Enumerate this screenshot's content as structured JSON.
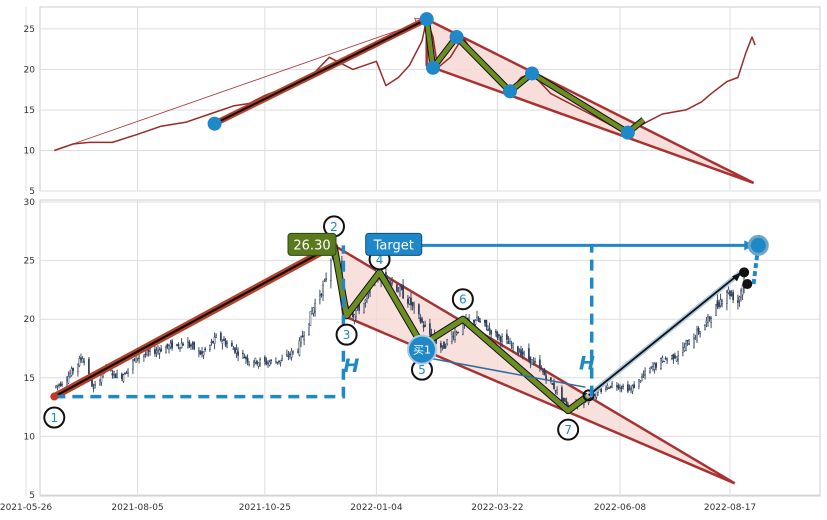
{
  "chart_data": [
    {
      "type": "line",
      "panel": "top",
      "ylim": [
        5,
        28
      ],
      "yticks": [
        "5",
        "10",
        "15",
        "20",
        "25"
      ],
      "grid": true,
      "series": [
        {
          "color": "#9b2a2a",
          "points": [
            [
              "2021-06-13",
              10.0
            ],
            [
              "2021-06-25",
              10.8
            ],
            [
              "2021-07-05",
              11.0
            ],
            [
              "2021-07-20",
              11.0
            ],
            [
              "2021-08-05",
              12.0
            ],
            [
              "2021-08-20",
              13.0
            ],
            [
              "2021-09-05",
              13.5
            ],
            [
              "2021-09-20",
              14.5
            ],
            [
              "2021-10-05",
              15.5
            ],
            [
              "2021-10-15",
              15.8
            ],
            [
              "2021-10-25",
              16.8
            ],
            [
              "2021-11-10",
              18.0
            ],
            [
              "2021-11-25",
              19.5
            ],
            [
              "2021-12-05",
              21.5
            ],
            [
              "2021-12-20",
              20.0
            ],
            [
              "2022-01-04",
              21.0
            ],
            [
              "2022-01-10",
              18.0
            ],
            [
              "2022-01-18",
              19.0
            ],
            [
              "2022-01-25",
              20.5
            ],
            [
              "2022-02-02",
              23.5
            ],
            [
              "2022-02-05",
              26.2
            ],
            [
              "2022-02-09",
              24.0
            ],
            [
              "2022-02-12",
              20.2
            ],
            [
              "2022-02-20",
              21.5
            ],
            [
              "2022-02-28",
              24.0
            ],
            [
              "2022-03-10",
              21.0
            ],
            [
              "2022-03-22",
              18.5
            ],
            [
              "2022-03-30",
              17.3
            ],
            [
              "2022-04-06",
              19.0
            ],
            [
              "2022-04-13",
              19.5
            ],
            [
              "2022-04-25",
              17.0
            ],
            [
              "2022-05-05",
              16.0
            ],
            [
              "2022-05-20",
              14.5
            ],
            [
              "2022-06-08",
              12.5
            ],
            [
              "2022-06-13",
              12.2
            ],
            [
              "2022-06-25",
              13.5
            ],
            [
              "2022-07-05",
              14.5
            ],
            [
              "2022-07-20",
              15.0
            ],
            [
              "2022-07-30",
              16.0
            ],
            [
              "2022-08-05",
              17.0
            ],
            [
              "2022-08-15",
              18.5
            ],
            [
              "2022-08-22",
              19.0
            ],
            [
              "2022-08-27",
              22.0
            ],
            [
              "2022-08-31",
              24.0
            ],
            [
              "2022-09-02",
              23.0
            ]
          ]
        }
      ],
      "markers": [
        {
          "date": "2021-09-23",
          "value": 13.3
        },
        {
          "date": "2022-02-05",
          "value": 26.2
        },
        {
          "date": "2022-02-09",
          "value": 20.2
        },
        {
          "date": "2022-02-24",
          "value": 24.0
        },
        {
          "date": "2022-03-30",
          "value": 17.3
        },
        {
          "date": "2022-04-13",
          "value": 19.5
        },
        {
          "date": "2022-06-13",
          "value": 12.2
        }
      ],
      "trend_up": [
        [
          "2021-09-23",
          13.3
        ],
        [
          "2022-02-05",
          26.2
        ]
      ],
      "zigzag": [
        [
          "2022-02-05",
          26.2
        ],
        [
          "2022-02-09",
          20.2
        ],
        [
          "2022-02-24",
          24.0
        ],
        [
          "2022-03-30",
          17.3
        ],
        [
          "2022-04-13",
          19.5
        ],
        [
          "2022-06-13",
          12.2
        ],
        [
          "2022-06-23",
          13.8
        ]
      ],
      "wedge": [
        [
          "2022-02-05",
          26.2
        ],
        [
          "2022-09-01",
          6.0
        ],
        [
          "2022-02-05",
          20.5
        ]
      ],
      "ghost_arrow": [
        [
          "2021-06-13",
          10.0
        ],
        [
          "2022-02-05",
          26.2
        ]
      ]
    },
    {
      "type": "candlestick",
      "panel": "bottom",
      "ylim": [
        5,
        30
      ],
      "yticks": [
        "5",
        "10",
        "15",
        "20",
        "25",
        "30"
      ],
      "xticks": [
        "2021-05-26",
        "2021-08-05",
        "2021-10-25",
        "2022-01-04",
        "2022-03-22",
        "2022-06-08",
        "2022-08-17"
      ],
      "grid": true,
      "price_path": [
        [
          "2021-06-13",
          14.2
        ],
        [
          "2021-06-20",
          14.8
        ],
        [
          "2021-07-01",
          16.8
        ],
        [
          "2021-07-08",
          14.0
        ],
        [
          "2021-07-15",
          15.8
        ],
        [
          "2021-07-25",
          15.0
        ],
        [
          "2021-08-05",
          16.8
        ],
        [
          "2021-08-20",
          17.5
        ],
        [
          "2021-09-05",
          18.0
        ],
        [
          "2021-09-15",
          17.0
        ],
        [
          "2021-09-25",
          18.5
        ],
        [
          "2021-10-05",
          17.5
        ],
        [
          "2021-10-15",
          16.5
        ],
        [
          "2021-10-25",
          16.3
        ],
        [
          "2021-11-05",
          16.5
        ],
        [
          "2021-11-15",
          17.5
        ],
        [
          "2021-11-25",
          21.0
        ],
        [
          "2021-12-02",
          23.0
        ],
        [
          "2021-12-08",
          26.3
        ],
        [
          "2021-12-14",
          22.0
        ],
        [
          "2021-12-20",
          20.5
        ],
        [
          "2021-12-28",
          21.5
        ],
        [
          "2022-01-04",
          24.0
        ],
        [
          "2022-01-15",
          23.0
        ],
        [
          "2022-01-25",
          21.5
        ],
        [
          "2022-02-05",
          19.0
        ],
        [
          "2022-02-15",
          17.5
        ],
        [
          "2022-02-20",
          18.5
        ],
        [
          "2022-02-28",
          19.5
        ],
        [
          "2022-03-08",
          20.0
        ],
        [
          "2022-03-18",
          19.0
        ],
        [
          "2022-03-28",
          18.0
        ],
        [
          "2022-04-08",
          17.0
        ],
        [
          "2022-04-18",
          15.8
        ],
        [
          "2022-04-28",
          14.0
        ],
        [
          "2022-05-06",
          12.5
        ],
        [
          "2022-05-15",
          13.0
        ],
        [
          "2022-05-25",
          13.8
        ],
        [
          "2022-06-04",
          14.5
        ],
        [
          "2022-06-15",
          14.0
        ],
        [
          "2022-06-25",
          15.5
        ],
        [
          "2022-07-05",
          16.5
        ],
        [
          "2022-07-15",
          17.0
        ],
        [
          "2022-07-25",
          18.5
        ],
        [
          "2022-08-01",
          19.5
        ],
        [
          "2022-08-08",
          21.0
        ],
        [
          "2022-08-15",
          22.5
        ],
        [
          "2022-08-22",
          21.5
        ],
        [
          "2022-08-26",
          23.5
        ]
      ],
      "red_trend": [
        [
          "2021-06-13",
          13.4
        ],
        [
          "2021-12-08",
          26.3
        ]
      ],
      "zigzag": [
        [
          "2021-12-08",
          26.3
        ],
        [
          "2021-12-16",
          20.3
        ],
        [
          "2022-01-06",
          24.0
        ],
        [
          "2022-02-02",
          17.8
        ],
        [
          "2022-02-28",
          20.0
        ],
        [
          "2022-05-06",
          12.2
        ],
        [
          "2022-05-19",
          13.5
        ]
      ],
      "wedge": [
        [
          "2021-12-08",
          26.3
        ],
        [
          "2022-08-20",
          6.0
        ],
        [
          "2021-12-14",
          20.3
        ]
      ],
      "breakout_line": [
        [
          "2022-05-19",
          13.5
        ],
        [
          "2022-08-24",
          24.0
        ]
      ],
      "channel_arrow": [
        [
          "2022-02-02",
          16.8
        ],
        [
          "2022-05-17",
          14.2
        ]
      ],
      "target_arrow": [
        [
          "2022-01-22",
          26.3
        ],
        [
          "2022-09-04",
          26.3
        ]
      ],
      "target_dashed": [
        [
          "2022-09-01",
          23.0
        ],
        [
          "2022-09-04",
          26.3
        ]
      ],
      "h_dashed_1": [
        [
          "2021-06-13",
          13.4
        ],
        [
          "2021-12-14",
          13.4
        ],
        [
          "2021-12-14",
          26.3
        ]
      ],
      "h_dashed_2": [
        [
          "2022-05-21",
          13.4
        ],
        [
          "2022-05-21",
          26.3
        ]
      ],
      "target_marker": {
        "date": "2022-09-04",
        "value": 26.3
      },
      "buy_marker": {
        "date": "2022-02-02",
        "value": 17.4
      },
      "black_dots": [
        {
          "date": "2022-08-26",
          "value": 24.0
        },
        {
          "date": "2022-08-28",
          "value": 23.0
        }
      ],
      "pivots": [
        {
          "label": "1",
          "date": "2021-06-13",
          "value": 13.4,
          "dy": 21
        },
        {
          "label": "2",
          "date": "2021-12-08",
          "value": 26.3,
          "dy": -19
        },
        {
          "label": "3",
          "date": "2021-12-16",
          "value": 20.3,
          "dy": 19
        },
        {
          "label": "4",
          "date": "2022-01-06",
          "value": 24.0,
          "dy": -13
        },
        {
          "label": "5",
          "date": "2022-02-02",
          "value": 17.4,
          "dy": 20
        },
        {
          "label": "6",
          "date": "2022-02-28",
          "value": 20.0,
          "dy": -20
        },
        {
          "label": "7",
          "date": "2022-05-06",
          "value": 12.2,
          "dy": 19
        }
      ],
      "annotations": {
        "price_label": {
          "text": "26.30",
          "date": "2021-11-24",
          "value": 26.3,
          "bg": "#5b7a1e"
        },
        "target_label": {
          "text": "Target",
          "date": "2022-01-15",
          "value": 26.3,
          "bg": "#1e88c8"
        },
        "buy_label": {
          "text": "买1",
          "date": "2022-02-02",
          "value": 17.4,
          "bg": "#1e88c8"
        },
        "h_label_1": {
          "text": "H",
          "date": "2021-12-19",
          "value": 15.5
        },
        "h_label_2": {
          "text": "H",
          "date": "2022-05-18",
          "value": 15.7
        }
      }
    }
  ],
  "colors": {
    "red": "#b5402a",
    "dark_red": "#a83232",
    "olive": "#6b8e23",
    "blue": "#1e88c8",
    "candle": "#2c3e5c",
    "wedge_fill": "#f6d8d3"
  }
}
